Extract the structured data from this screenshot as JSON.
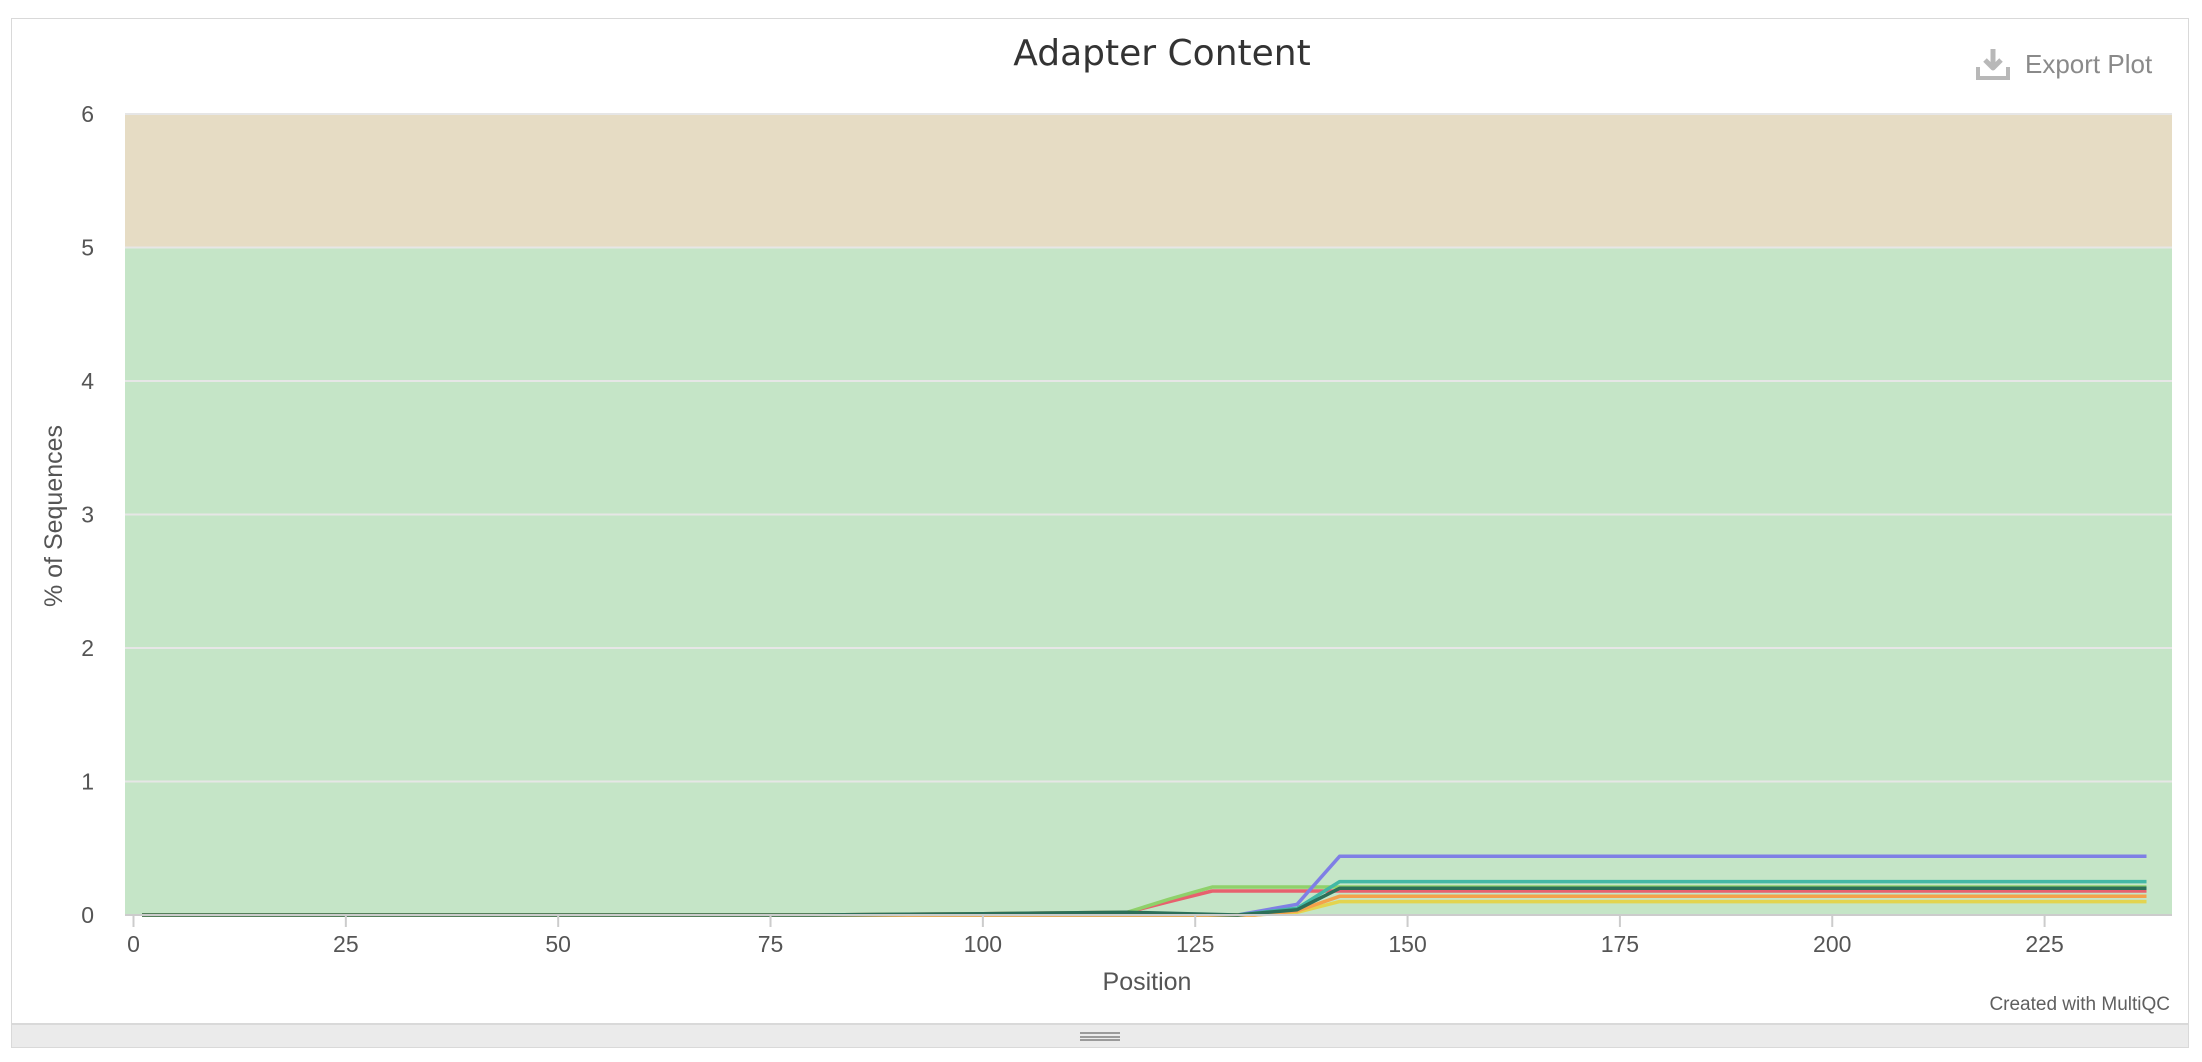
{
  "export": {
    "label": "Export Plot",
    "icon": "download-icon"
  },
  "credit": "Created with MultiQC",
  "resize_handle": {
    "icon": "grip-lines-icon"
  },
  "chart_data": {
    "type": "line",
    "title": "Adapter Content",
    "xlabel": "Position",
    "ylabel": "% of Sequences",
    "xlim": [
      -1,
      240
    ],
    "ylim": [
      0,
      6
    ],
    "xticks": [
      0,
      25,
      50,
      75,
      100,
      125,
      150,
      175,
      200,
      225
    ],
    "yticks": [
      0,
      1,
      2,
      3,
      4,
      5,
      6
    ],
    "grid": true,
    "legend": "none",
    "bands": [
      {
        "from": 0,
        "to": 5,
        "color": "#c5e5c7"
      },
      {
        "from": 5,
        "to": 6,
        "color": "#e6dcc4"
      }
    ],
    "series": [
      {
        "color": "#e7616e",
        "x": [
          1,
          80,
          100,
          117,
          122,
          127,
          135,
          237
        ],
        "y": [
          0,
          0,
          0.01,
          0.02,
          0.1,
          0.18,
          0.18,
          0.18
        ]
      },
      {
        "color": "#8fd16a",
        "x": [
          1,
          80,
          100,
          117,
          122,
          127,
          135,
          237
        ],
        "y": [
          0,
          0,
          0.01,
          0.02,
          0.12,
          0.21,
          0.21,
          0.21
        ]
      },
      {
        "color": "#7f7fe5",
        "x": [
          1,
          130,
          137,
          142,
          237
        ],
        "y": [
          0,
          0,
          0.08,
          0.44,
          0.44
        ]
      },
      {
        "color": "#43b8a5",
        "x": [
          1,
          130,
          137,
          142,
          237
        ],
        "y": [
          0,
          0,
          0.05,
          0.25,
          0.25
        ]
      },
      {
        "color": "#e3d450",
        "x": [
          1,
          132,
          137,
          142,
          237
        ],
        "y": [
          0,
          0,
          0.02,
          0.1,
          0.1
        ]
      },
      {
        "color": "#f4a24b",
        "x": [
          1,
          132,
          137,
          142,
          237
        ],
        "y": [
          0,
          0,
          0.03,
          0.14,
          0.14
        ]
      },
      {
        "color": "#2d6f58",
        "x": [
          1,
          80,
          100,
          117,
          130,
          137,
          142,
          237
        ],
        "y": [
          0,
          0,
          0.01,
          0.02,
          0.0,
          0.04,
          0.2,
          0.2
        ]
      }
    ]
  }
}
